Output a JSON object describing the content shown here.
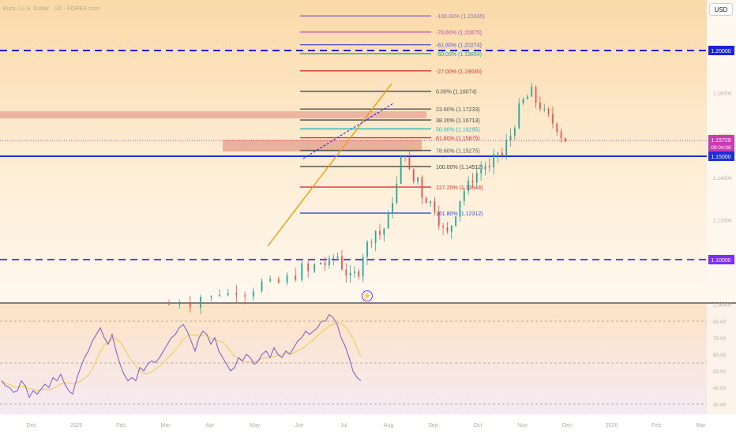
{
  "watermark": "Euro / U.S. Dollar · 1D · FOREX.com",
  "currency_badge": "USD",
  "price_labels": {
    "upper_dashed": "1.20000",
    "current": "1.15729",
    "countdown": "09:04:08",
    "support": "1.15000",
    "lower_dashed": "1.10000"
  },
  "fib_levels": [
    {
      "label": "-100.00% (1.21635)",
      "color": "#8e6fb8"
    },
    {
      "label": "-78.60% (1.20875)",
      "color": "#c24fa8"
    },
    {
      "label": "-61.80% (1.20274)",
      "color": "#5c59c6"
    },
    {
      "label": "-50.00% (1.19854)",
      "color": "#1aa6a6"
    },
    {
      "label": "-27.00% (1.19035)",
      "color": "#e03131"
    },
    {
      "label": "0.00% (1.18074)",
      "color": "#555555"
    },
    {
      "label": "23.60% (1.17233)",
      "color": "#555555"
    },
    {
      "label": "38.20% (1.16713)",
      "color": "#444444"
    },
    {
      "label": "50.00% (1.16295)",
      "color": "#1fb8b8"
    },
    {
      "label": "61.80% (1.15875)",
      "color": "#e03131"
    },
    {
      "label": "78.60% (1.15275)",
      "color": "#555555"
    },
    {
      "label": "100.00% (1.14512)",
      "color": "#444444"
    },
    {
      "label": "127.20% (1.13544)",
      "color": "#e03131"
    },
    {
      "label": "161.80% (1.12312)",
      "color": "#2a52d6"
    }
  ],
  "price_axis_ticks": [
    "1.18000",
    "1.16000",
    "1.14000",
    "1.12000",
    "1.10000",
    "1.08000"
  ],
  "rsi_axis_ticks": [
    "80.00",
    "70.00",
    "60.00",
    "50.00",
    "40.00",
    "30.00"
  ],
  "time_axis": [
    "Dec",
    "2025",
    "Feb",
    "Mar",
    "Apr",
    "May",
    "Jun",
    "Jul",
    "Aug",
    "Sep",
    "Oct",
    "Nov",
    "Dec",
    "2026",
    "Feb",
    "Mar"
  ],
  "colors": {
    "up_candle": "#26a69a",
    "down_candle": "#ef5350",
    "trendline": "#f39c12",
    "rsi": "#7e57c2",
    "rsi_ma": "#f2c94c",
    "dashed_blue": "#1e22d6",
    "dashed_purple": "#7b2ff7",
    "support_blue": "#1f2ed8",
    "zone": "#d98d78"
  },
  "chart_data": {
    "type": "candlestick",
    "y_range_price": [
      1.076,
      1.24
    ],
    "y_range_rsi": [
      25,
      90
    ],
    "horizontal_levels": [
      1.2,
      1.15,
      1.1
    ],
    "current_price": 1.15729,
    "fib_values": [
      1.21635,
      1.20875,
      1.20274,
      1.19854,
      1.19035,
      1.18074,
      1.17233,
      1.16713,
      1.16295,
      1.15875,
      1.15275,
      1.14512,
      1.13544,
      1.12312
    ],
    "close_path": [
      [
        0,
        1.08
      ],
      [
        5,
        1.082
      ],
      [
        10,
        1.081
      ],
      [
        15,
        1.084
      ],
      [
        20,
        1.083
      ],
      [
        24,
        1.086
      ],
      [
        28,
        1.085
      ],
      [
        32,
        1.087
      ],
      [
        36,
        1.086
      ],
      [
        40,
        1.088
      ],
      [
        44,
        1.09
      ],
      [
        48,
        1.089
      ],
      [
        52,
        1.09
      ],
      [
        56,
        1.092
      ],
      [
        60,
        1.094
      ],
      [
        63,
        1.097
      ],
      [
        66,
        1.095
      ],
      [
        69,
        1.098
      ],
      [
        72,
        1.1
      ],
      [
        74,
        1.099
      ],
      [
        76,
        1.099
      ],
      [
        78,
        1.102
      ],
      [
        80,
        1.103
      ],
      [
        82,
        1.098
      ],
      [
        84,
        1.095
      ],
      [
        86,
        1.092
      ],
      [
        88,
        1.094
      ],
      [
        90,
        1.096
      ],
      [
        92,
        1.104
      ],
      [
        94,
        1.108
      ],
      [
        96,
        1.112
      ],
      [
        98,
        1.115
      ],
      [
        100,
        1.113
      ],
      [
        102,
        1.116
      ],
      [
        104,
        1.121
      ],
      [
        106,
        1.13
      ],
      [
        108,
        1.136
      ],
      [
        110,
        1.148
      ],
      [
        112,
        1.152
      ],
      [
        114,
        1.142
      ],
      [
        116,
        1.138
      ],
      [
        118,
        1.14
      ],
      [
        120,
        1.132
      ],
      [
        122,
        1.13
      ],
      [
        124,
        1.128
      ],
      [
        126,
        1.126
      ],
      [
        128,
        1.12
      ],
      [
        130,
        1.115
      ],
      [
        132,
        1.113
      ],
      [
        134,
        1.118
      ],
      [
        136,
        1.124
      ],
      [
        138,
        1.13
      ],
      [
        140,
        1.134
      ],
      [
        142,
        1.136
      ],
      [
        144,
        1.14
      ],
      [
        146,
        1.142
      ],
      [
        148,
        1.144
      ],
      [
        150,
        1.146
      ],
      [
        152,
        1.143
      ],
      [
        154,
        1.148
      ],
      [
        156,
        1.152
      ],
      [
        158,
        1.15
      ],
      [
        160,
        1.156
      ],
      [
        162,
        1.16
      ],
      [
        164,
        1.166
      ],
      [
        166,
        1.172
      ],
      [
        168,
        1.176
      ],
      [
        170,
        1.178
      ],
      [
        172,
        1.18
      ],
      [
        174,
        1.176
      ],
      [
        176,
        1.174
      ],
      [
        178,
        1.17
      ],
      [
        180,
        1.168
      ],
      [
        182,
        1.166
      ],
      [
        184,
        1.164
      ],
      [
        186,
        1.16
      ],
      [
        188,
        1.158
      ]
    ],
    "rsi_path": [
      [
        0,
        44
      ],
      [
        5,
        41
      ],
      [
        10,
        40
      ],
      [
        15,
        37
      ],
      [
        20,
        38
      ],
      [
        25,
        44
      ],
      [
        30,
        41
      ],
      [
        35,
        34
      ],
      [
        40,
        38
      ],
      [
        45,
        36
      ],
      [
        50,
        39
      ],
      [
        55,
        42
      ],
      [
        60,
        40
      ],
      [
        65,
        46
      ],
      [
        70,
        44
      ],
      [
        75,
        48
      ],
      [
        80,
        42
      ],
      [
        85,
        38
      ],
      [
        90,
        36
      ],
      [
        95,
        45
      ],
      [
        100,
        52
      ],
      [
        105,
        58
      ],
      [
        110,
        62
      ],
      [
        115,
        68
      ],
      [
        120,
        72
      ],
      [
        125,
        76
      ],
      [
        130,
        70
      ],
      [
        135,
        66
      ],
      [
        140,
        72
      ],
      [
        145,
        62
      ],
      [
        150,
        54
      ],
      [
        155,
        48
      ],
      [
        160,
        44
      ],
      [
        165,
        46
      ],
      [
        170,
        44
      ],
      [
        175,
        52
      ],
      [
        180,
        50
      ],
      [
        185,
        54
      ],
      [
        190,
        56
      ],
      [
        195,
        55
      ],
      [
        200,
        58
      ],
      [
        205,
        62
      ],
      [
        210,
        66
      ],
      [
        215,
        70
      ],
      [
        220,
        72
      ],
      [
        225,
        76
      ],
      [
        230,
        78
      ],
      [
        235,
        74
      ],
      [
        240,
        68
      ],
      [
        245,
        62
      ],
      [
        250,
        70
      ],
      [
        255,
        74
      ],
      [
        260,
        72
      ],
      [
        265,
        66
      ],
      [
        270,
        70
      ],
      [
        275,
        62
      ],
      [
        280,
        58
      ],
      [
        285,
        54
      ],
      [
        290,
        50
      ],
      [
        295,
        52
      ],
      [
        300,
        58
      ],
      [
        305,
        56
      ],
      [
        310,
        60
      ],
      [
        315,
        58
      ],
      [
        320,
        54
      ],
      [
        325,
        56
      ],
      [
        330,
        60
      ],
      [
        335,
        62
      ],
      [
        340,
        58
      ],
      [
        345,
        64
      ],
      [
        350,
        60
      ],
      [
        355,
        58
      ],
      [
        360,
        62
      ],
      [
        365,
        60
      ],
      [
        370,
        64
      ],
      [
        375,
        68
      ],
      [
        380,
        70
      ],
      [
        385,
        74
      ],
      [
        390,
        72
      ],
      [
        395,
        74
      ],
      [
        400,
        76
      ],
      [
        405,
        80
      ],
      [
        410,
        80
      ],
      [
        415,
        84
      ],
      [
        420,
        82
      ],
      [
        425,
        78
      ],
      [
        430,
        70
      ],
      [
        435,
        65
      ],
      [
        440,
        58
      ],
      [
        445,
        50
      ],
      [
        450,
        46
      ],
      [
        455,
        44
      ]
    ]
  }
}
